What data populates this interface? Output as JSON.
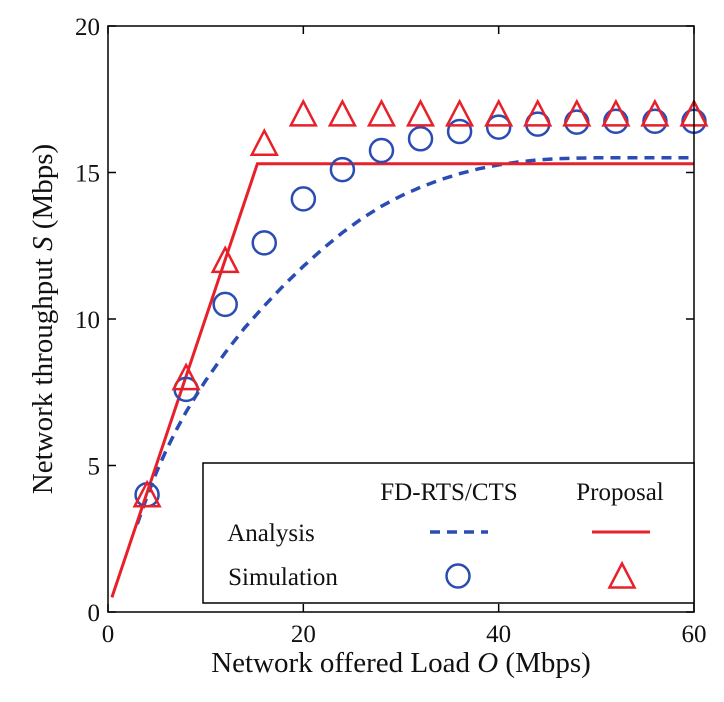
{
  "chart_data": {
    "type": "line",
    "title": "",
    "xlabel": {
      "prefix": "Network offered Load ",
      "var": "O",
      "suffix": " (Mbps)"
    },
    "ylabel": {
      "prefix": "Network throughput ",
      "var": "S",
      "suffix": " (Mbps)"
    },
    "xlim": [
      0,
      60
    ],
    "ylim": [
      0,
      20
    ],
    "xticks": [
      0,
      20,
      40,
      60
    ],
    "yticks": [
      0,
      5,
      10,
      15,
      20
    ],
    "grid": false,
    "legend": {
      "placement": "bottom-right",
      "col_headers": [
        "FD-RTS/CTS",
        "Proposal"
      ],
      "row_labels": [
        "Analysis",
        "Simulation"
      ]
    },
    "series": [
      {
        "name": "FD-RTS/CTS Analysis",
        "kind": "line",
        "style": "dashed",
        "color": "#2b4db3",
        "x": [
          3,
          4,
          5,
          6,
          7,
          8,
          9,
          10,
          12,
          14,
          16,
          18,
          20,
          22,
          24,
          26,
          28,
          30,
          32,
          34,
          36,
          38,
          40,
          42,
          44,
          46,
          48,
          50,
          52,
          54,
          56,
          58,
          60
        ],
        "y": [
          3.0,
          3.95,
          4.8,
          5.55,
          6.22,
          6.83,
          7.38,
          7.9,
          8.85,
          9.7,
          10.45,
          11.15,
          11.8,
          12.4,
          12.95,
          13.43,
          13.85,
          14.2,
          14.5,
          14.75,
          14.96,
          15.13,
          15.26,
          15.36,
          15.43,
          15.47,
          15.49,
          15.5,
          15.5,
          15.5,
          15.5,
          15.5,
          15.5
        ]
      },
      {
        "name": "Proposal Analysis",
        "kind": "line",
        "style": "solid",
        "color": "#e8202a",
        "x": [
          0.4,
          15.3,
          60
        ],
        "y": [
          0.5,
          15.3,
          15.3
        ]
      },
      {
        "name": "FD-RTS/CTS Simulation",
        "kind": "scatter",
        "marker": "circle",
        "color": "#2b4db3",
        "x": [
          4,
          8,
          12,
          16,
          20,
          24,
          28,
          32,
          36,
          40,
          44,
          48,
          52,
          56,
          60
        ],
        "y": [
          4.0,
          7.6,
          10.5,
          12.6,
          14.1,
          15.1,
          15.75,
          16.15,
          16.4,
          16.55,
          16.65,
          16.72,
          16.75,
          16.75,
          16.75
        ]
      },
      {
        "name": "Proposal Simulation",
        "kind": "scatter",
        "marker": "triangle",
        "color": "#e8202a",
        "x": [
          4,
          8,
          12,
          16,
          20,
          24,
          28,
          32,
          36,
          40,
          44,
          48,
          52,
          56,
          60
        ],
        "y": [
          4.0,
          8.0,
          12.0,
          16.0,
          17.0,
          17.0,
          17.0,
          17.0,
          17.0,
          17.0,
          17.0,
          17.0,
          17.0,
          17.0,
          17.0
        ]
      }
    ]
  }
}
